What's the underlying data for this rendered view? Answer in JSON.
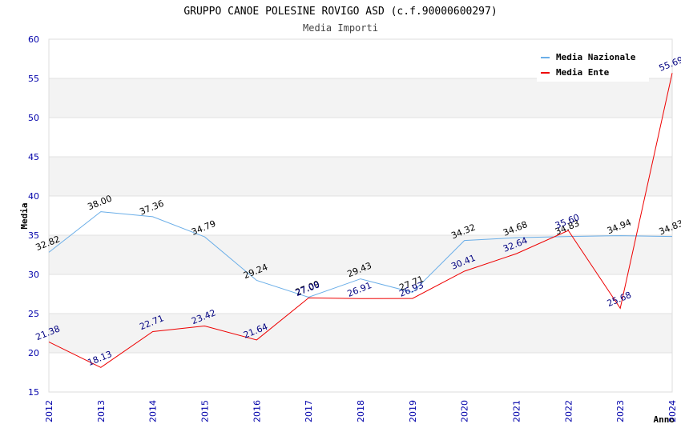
{
  "chart_data": {
    "type": "line",
    "title": "GRUPPO CANOE POLESINE ROVIGO ASD (c.f.90000600297)",
    "subtitle": "Media Importi",
    "xlabel": "Anno",
    "ylabel": "Media",
    "ylim": [
      15,
      60
    ],
    "yticks": [
      "15",
      "20",
      "25",
      "30",
      "35",
      "40",
      "45",
      "50",
      "55",
      "60"
    ],
    "categories": [
      "2012",
      "2013",
      "2014",
      "2015",
      "2016",
      "2017",
      "2018",
      "2019",
      "2020",
      "2021",
      "2022",
      "2023",
      "2024"
    ],
    "grid": "horizontal bands",
    "legend_position": "top-right",
    "series": [
      {
        "name": "Media Nazionale",
        "color": "#6aaee8",
        "label_color": "#000000",
        "values": [
          32.82,
          38.0,
          37.36,
          34.79,
          29.24,
          27.09,
          29.43,
          27.71,
          34.32,
          34.68,
          34.83,
          34.94,
          34.83
        ],
        "labels": [
          "32.82",
          "38.00",
          "37.36",
          "34.79",
          "29.24",
          "27.09",
          "29.43",
          "27.71",
          "34.32",
          "34.68",
          "34.83",
          "34.94",
          "34.83"
        ]
      },
      {
        "name": "Media Ente",
        "color": "#ee0000",
        "label_color": "#000080",
        "values": [
          21.38,
          18.13,
          22.71,
          23.42,
          21.64,
          27.0,
          26.91,
          26.93,
          30.41,
          32.64,
          35.6,
          25.68,
          55.69
        ],
        "labels": [
          "21.38",
          "18.13",
          "22.71",
          "23.42",
          "21.64",
          "27.00",
          "26.91",
          "26.93",
          "30.41",
          "32.64",
          "35.60",
          "25.68",
          "55.69"
        ]
      }
    ]
  }
}
